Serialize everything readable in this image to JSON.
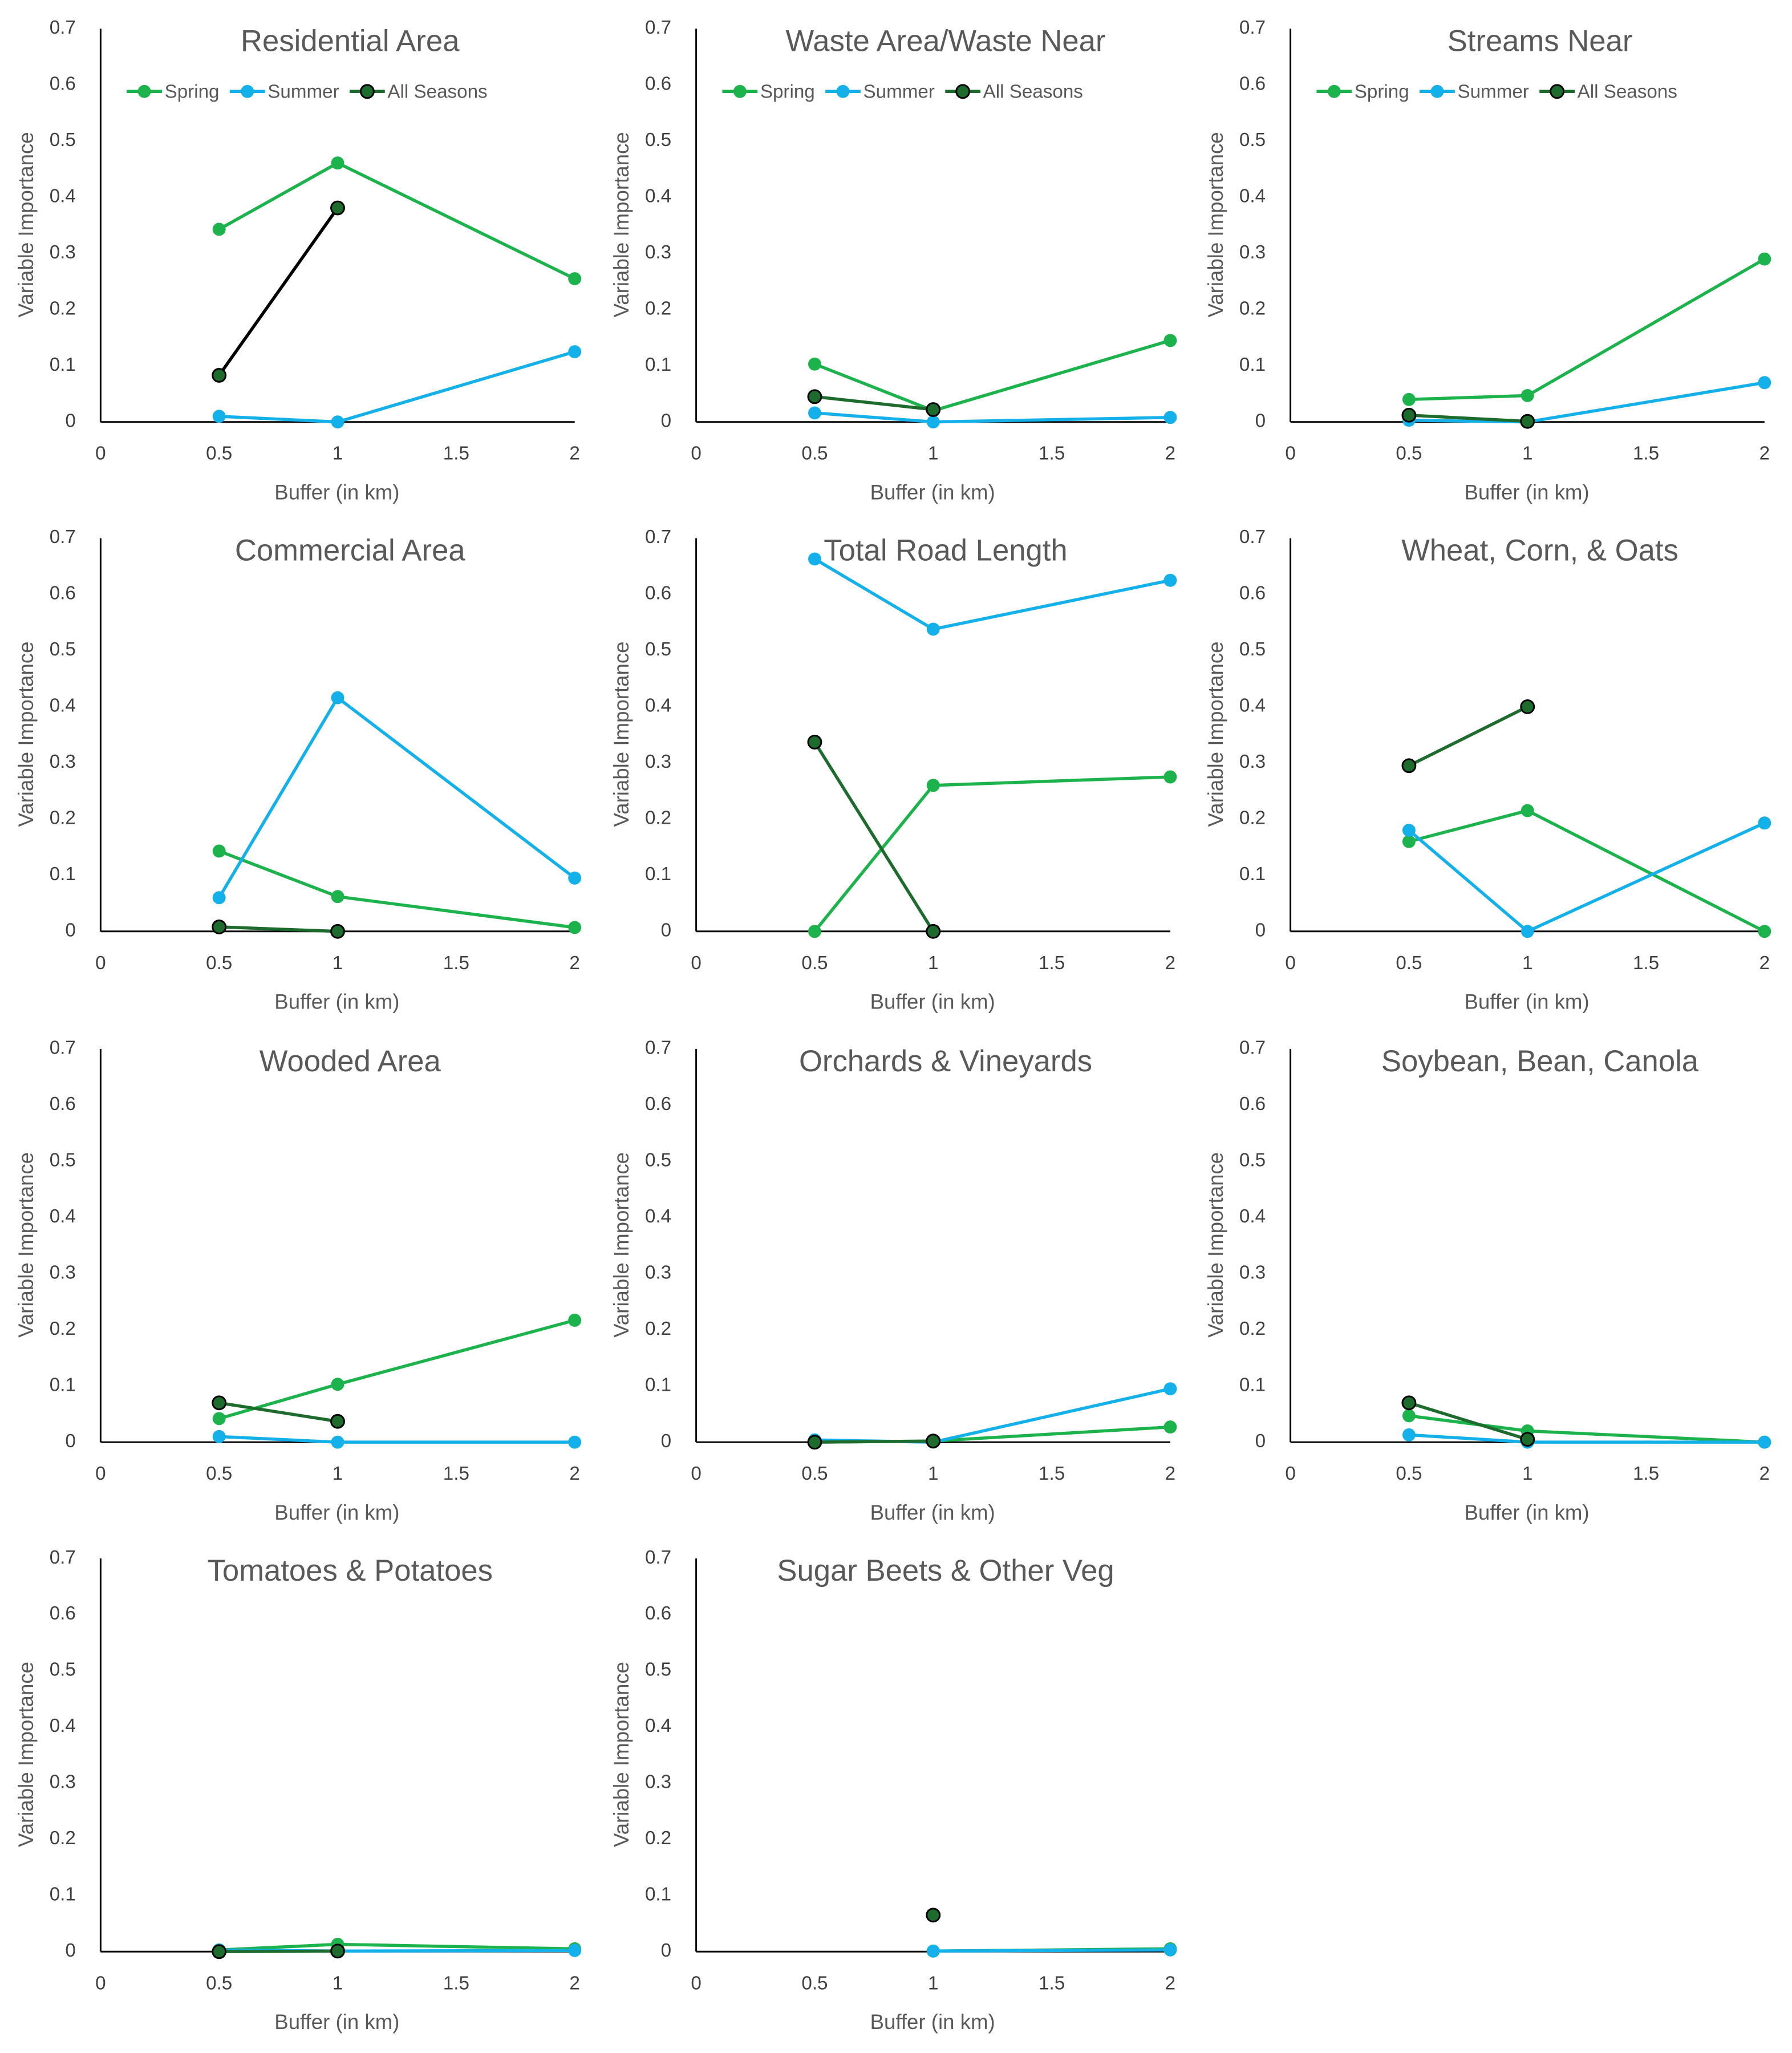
{
  "chart_data": [
    {
      "type": "line",
      "title": "Residential Area",
      "xlabel": "Buffer (in km)",
      "ylabel": "Variable Importance",
      "legend": "top",
      "x": [
        0.5,
        1,
        2
      ],
      "xlim": [
        0,
        2
      ],
      "xticks": [
        0,
        0.5,
        1,
        1.5,
        2
      ],
      "ylim": [
        0,
        0.7
      ],
      "yticks": [
        0,
        0.1,
        0.2,
        0.3,
        0.4,
        0.5,
        0.6,
        0.7
      ],
      "series": [
        {
          "name": "Spring",
          "color": "#1db34c",
          "values": [
            0.343,
            0.461,
            0.255
          ]
        },
        {
          "name": "Summer",
          "color": "#14b0ea",
          "values": [
            0.01,
            0,
            0.125
          ]
        },
        {
          "name": "All Seasons",
          "color": "#1e6b2e",
          "edgecolor": "#000000",
          "line_color": "#000000",
          "values": [
            0.083,
            0.381,
            null
          ]
        }
      ]
    },
    {
      "type": "line",
      "title": "Waste Area/Waste Near",
      "xlabel": "Buffer (in km)",
      "ylabel": "Variable Importance",
      "legend": "top",
      "x": [
        0.5,
        1,
        2
      ],
      "xlim": [
        0,
        2
      ],
      "xticks": [
        0,
        0.5,
        1,
        1.5,
        2
      ],
      "ylim": [
        0,
        0.7
      ],
      "yticks": [
        0,
        0.1,
        0.2,
        0.3,
        0.4,
        0.5,
        0.6,
        0.7
      ],
      "series": [
        {
          "name": "Spring",
          "color": "#1db34c",
          "values": [
            0.103,
            0.02,
            0.145
          ]
        },
        {
          "name": "Summer",
          "color": "#14b0ea",
          "values": [
            0.016,
            0,
            0.008
          ]
        },
        {
          "name": "All Seasons",
          "color": "#1e6b2e",
          "edgecolor": "#000000",
          "values": [
            0.045,
            0.022,
            null
          ]
        }
      ]
    },
    {
      "type": "line",
      "title": "Streams Near",
      "xlabel": "Buffer (in km)",
      "ylabel": "Variable Importance",
      "legend": "top",
      "x": [
        0.5,
        1,
        2
      ],
      "xlim": [
        0,
        2
      ],
      "xticks": [
        0,
        0.5,
        1,
        1.5,
        2
      ],
      "ylim": [
        0,
        0.7
      ],
      "yticks": [
        0,
        0.1,
        0.2,
        0.3,
        0.4,
        0.5,
        0.6,
        0.7
      ],
      "series": [
        {
          "name": "Spring",
          "color": "#1db34c",
          "values": [
            0.04,
            0.047,
            0.29
          ]
        },
        {
          "name": "Summer",
          "color": "#14b0ea",
          "values": [
            0.003,
            0,
            0.07
          ]
        },
        {
          "name": "All Seasons",
          "color": "#1e6b2e",
          "edgecolor": "#000000",
          "values": [
            0.012,
            0.001,
            null
          ]
        }
      ]
    },
    {
      "type": "line",
      "title": "Commercial Area",
      "xlabel": "Buffer (in km)",
      "ylabel": "Variable Importance",
      "x": [
        0.5,
        1,
        2
      ],
      "xlim": [
        0,
        2
      ],
      "xticks": [
        0,
        0.5,
        1,
        1.5,
        2
      ],
      "ylim": [
        0,
        0.7
      ],
      "yticks": [
        0,
        0.1,
        0.2,
        0.3,
        0.4,
        0.5,
        0.6,
        0.7
      ],
      "series": [
        {
          "color": "#1db34c",
          "values": [
            0.143,
            0.062,
            0.007
          ]
        },
        {
          "color": "#14b0ea",
          "values": [
            0.06,
            0.416,
            0.095
          ]
        },
        {
          "color": "#1e6b2e",
          "edgecolor": "#000000",
          "values": [
            0.008,
            0,
            null
          ]
        }
      ]
    },
    {
      "type": "line",
      "title": "Total Road Length",
      "xlabel": "Buffer (in km)",
      "ylabel": "Variable Importance",
      "x": [
        0.5,
        1,
        2
      ],
      "xlim": [
        0,
        2
      ],
      "xticks": [
        0,
        0.5,
        1,
        1.5,
        2
      ],
      "ylim": [
        0,
        0.7
      ],
      "yticks": [
        0,
        0.1,
        0.2,
        0.3,
        0.4,
        0.5,
        0.6,
        0.7
      ],
      "series": [
        {
          "color": "#1db34c",
          "values": [
            0,
            0.26,
            0.275
          ]
        },
        {
          "color": "#14b0ea",
          "values": [
            0.663,
            0.538,
            0.625
          ]
        },
        {
          "color": "#1e6b2e",
          "edgecolor": "#000000",
          "values": [
            0.337,
            0,
            null
          ]
        }
      ]
    },
    {
      "type": "line",
      "title": "Wheat, Corn, & Oats",
      "xlabel": "Buffer (in km)",
      "ylabel": "Variable Importance",
      "x": [
        0.5,
        1,
        2
      ],
      "xlim": [
        0,
        2
      ],
      "xticks": [
        0,
        0.5,
        1,
        1.5,
        2
      ],
      "ylim": [
        0,
        0.7
      ],
      "yticks": [
        0,
        0.1,
        0.2,
        0.3,
        0.4,
        0.5,
        0.6,
        0.7
      ],
      "series": [
        {
          "color": "#1db34c",
          "values": [
            0.16,
            0.215,
            0
          ]
        },
        {
          "color": "#14b0ea",
          "values": [
            0.18,
            0,
            0.193
          ]
        },
        {
          "color": "#1e6b2e",
          "edgecolor": "#000000",
          "values": [
            0.295,
            0.4,
            null
          ]
        }
      ]
    },
    {
      "type": "line",
      "title": "Wooded Area",
      "xlabel": "Buffer (in km)",
      "ylabel": "Variable Importance",
      "x": [
        0.5,
        1,
        2
      ],
      "xlim": [
        0,
        2
      ],
      "xticks": [
        0,
        0.5,
        1,
        1.5,
        2
      ],
      "ylim": [
        0,
        0.7
      ],
      "yticks": [
        0,
        0.1,
        0.2,
        0.3,
        0.4,
        0.5,
        0.6,
        0.7
      ],
      "series": [
        {
          "color": "#1db34c",
          "values": [
            0.042,
            0.103,
            0.217
          ]
        },
        {
          "color": "#14b0ea",
          "values": [
            0.01,
            0,
            0
          ]
        },
        {
          "color": "#1e6b2e",
          "edgecolor": "#000000",
          "values": [
            0.07,
            0.037,
            null
          ]
        }
      ]
    },
    {
      "type": "line",
      "title": "Orchards & Vineyards",
      "xlabel": "Buffer (in km)",
      "ylabel": "Variable Importance",
      "x": [
        0.5,
        1,
        2
      ],
      "xlim": [
        0,
        2
      ],
      "xticks": [
        0,
        0.5,
        1,
        1.5,
        2
      ],
      "ylim": [
        0,
        0.7
      ],
      "yticks": [
        0,
        0.1,
        0.2,
        0.3,
        0.4,
        0.5,
        0.6,
        0.7
      ],
      "series": [
        {
          "color": "#1db34c",
          "values": [
            0,
            0.002,
            0.027
          ]
        },
        {
          "color": "#14b0ea",
          "values": [
            0.004,
            0,
            0.095
          ]
        },
        {
          "color": "#1e6b2e",
          "edgecolor": "#000000",
          "values": [
            0,
            0.002,
            null
          ]
        }
      ]
    },
    {
      "type": "line",
      "title": "Soybean, Bean, Canola",
      "xlabel": "Buffer (in km)",
      "ylabel": "Variable Importance",
      "x": [
        0.5,
        1,
        2
      ],
      "xlim": [
        0,
        2
      ],
      "xticks": [
        0,
        0.5,
        1,
        1.5,
        2
      ],
      "ylim": [
        0,
        0.7
      ],
      "yticks": [
        0,
        0.1,
        0.2,
        0.3,
        0.4,
        0.5,
        0.6,
        0.7
      ],
      "series": [
        {
          "color": "#1db34c",
          "values": [
            0.047,
            0.02,
            0
          ]
        },
        {
          "color": "#14b0ea",
          "values": [
            0.013,
            0,
            0
          ]
        },
        {
          "color": "#1e6b2e",
          "edgecolor": "#000000",
          "values": [
            0.07,
            0.005,
            null
          ]
        }
      ]
    },
    {
      "type": "line",
      "title": "Tomatoes & Potatoes",
      "xlabel": "Buffer (in km)",
      "ylabel": "Variable Importance",
      "x": [
        0.5,
        1,
        2
      ],
      "xlim": [
        0,
        2
      ],
      "xticks": [
        0,
        0.5,
        1,
        1.5,
        2
      ],
      "ylim": [
        0,
        0.7
      ],
      "yticks": [
        0,
        0.1,
        0.2,
        0.3,
        0.4,
        0.5,
        0.6,
        0.7
      ],
      "series": [
        {
          "color": "#1db34c",
          "values": [
            0.003,
            0.013,
            0.005
          ]
        },
        {
          "color": "#14b0ea",
          "values": [
            0.003,
            0.001,
            0.002
          ]
        },
        {
          "color": "#1e6b2e",
          "edgecolor": "#000000",
          "values": [
            0,
            0.001,
            null
          ]
        }
      ]
    },
    {
      "type": "line",
      "title": "Sugar Beets & Other Veg",
      "xlabel": "Buffer (in km)",
      "ylabel": "Variable Importance",
      "x": [
        0.5,
        1,
        2
      ],
      "xlim": [
        0,
        2
      ],
      "xticks": [
        0,
        0.5,
        1,
        1.5,
        2
      ],
      "ylim": [
        0,
        0.7
      ],
      "yticks": [
        0,
        0.1,
        0.2,
        0.3,
        0.4,
        0.5,
        0.6,
        0.7
      ],
      "series": [
        {
          "color": "#1db34c",
          "values": [
            null,
            0.001,
            0.005
          ]
        },
        {
          "color": "#14b0ea",
          "values": [
            null,
            0.001,
            0.003
          ]
        },
        {
          "color": "#1e6b2e",
          "edgecolor": "#000000",
          "values": [
            null,
            0.065,
            null
          ]
        }
      ]
    }
  ]
}
